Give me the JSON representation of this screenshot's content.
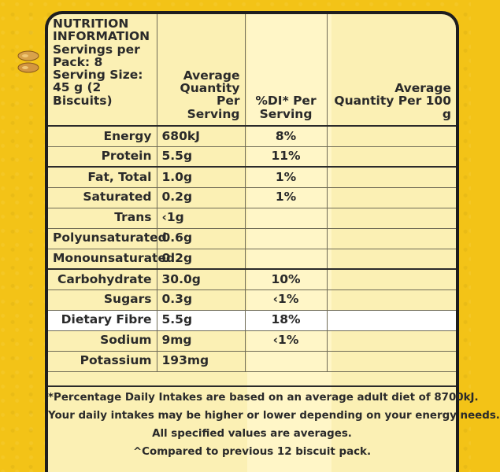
{
  "header": {
    "info": "NUTRITION INFORMATION",
    "servings": "Servings per Pack: 8",
    "serving_size": "Serving Size: 45 g (2 Biscuits)",
    "col_avg_serving": "Average Quantity Per Serving",
    "col_di": "%DI* Per Serving",
    "col_avg_100g": "Average Quantity Per 100 g"
  },
  "rows": [
    {
      "label": "Energy",
      "per_serving": "680kJ",
      "di": "8%",
      "per_100g": ""
    },
    {
      "label": "Protein",
      "per_serving": "5.5g",
      "di": "11%",
      "per_100g": ""
    },
    {
      "label": "Fat, Total",
      "per_serving": "1.0g",
      "di": "1%",
      "per_100g": ""
    },
    {
      "label": "Saturated",
      "per_serving": "0.2g",
      "di": "1%",
      "per_100g": ""
    },
    {
      "label": "Trans",
      "per_serving": "‹1g",
      "di": "",
      "per_100g": ""
    },
    {
      "label": "Polyunsaturated",
      "per_serving": "0.6g",
      "di": "",
      "per_100g": ""
    },
    {
      "label": "Monounsaturated",
      "per_serving": "0.2g",
      "di": "",
      "per_100g": ""
    },
    {
      "label": "Carbohydrate",
      "per_serving": "30.0g",
      "di": "10%",
      "per_100g": ""
    },
    {
      "label": "Sugars",
      "per_serving": "0.3g",
      "di": "‹1%",
      "per_100g": ""
    },
    {
      "label": "Dietary Fibre",
      "per_serving": "5.5g",
      "di": "18%",
      "per_100g": ""
    },
    {
      "label": "Sodium",
      "per_serving": "9mg",
      "di": "‹1%",
      "per_100g": ""
    },
    {
      "label": "Potassium",
      "per_serving": "193mg",
      "di": "",
      "per_100g": ""
    }
  ],
  "footnotes": [
    "*Percentage Daily Intakes are based on an average adult diet of 8700kJ.",
    "Your daily intakes may be higher or lower depending on your energy needs.",
    "All specified values are averages.",
    "^Compared to previous 12 biscuit pack."
  ],
  "colors": {
    "background": "#f3c317",
    "panel": "#fbf0b4",
    "highlight_row": "#ffffff",
    "text": "#2a2a2a"
  },
  "icons": [
    "wheat-grain-icon"
  ]
}
